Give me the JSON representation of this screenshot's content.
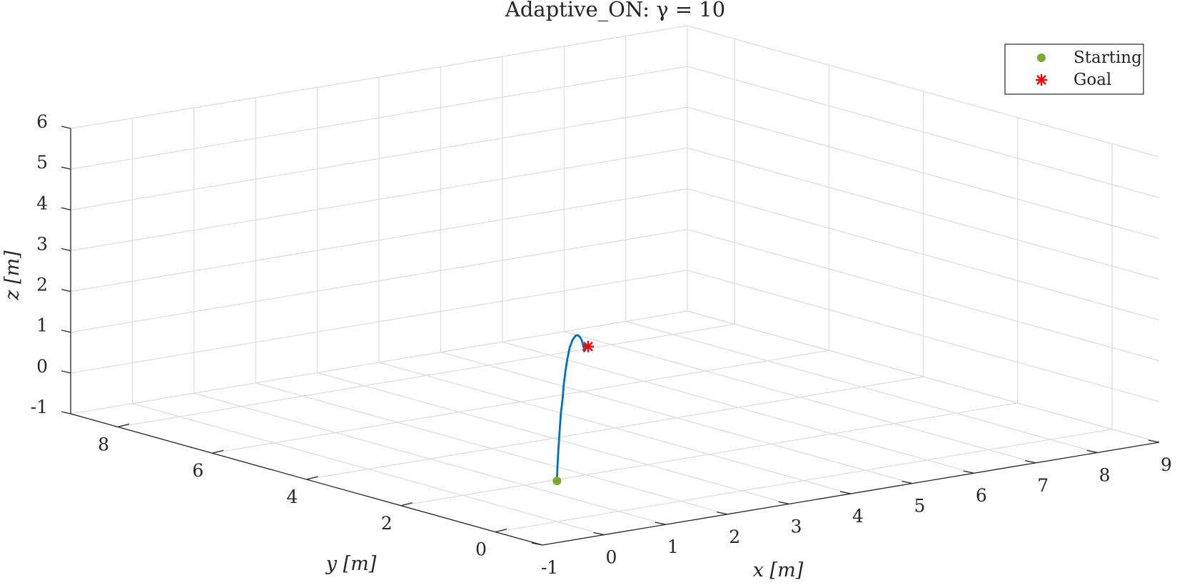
{
  "chart_data": {
    "type": "line",
    "projection": "3d",
    "title": "Adaptive_ON: γ = 10",
    "xlabel": "x [m]",
    "ylabel": "y [m]",
    "zlabel": "z [m]",
    "xlim": [
      -1,
      9
    ],
    "ylim": [
      -1,
      9
    ],
    "zlim": [
      -1,
      6
    ],
    "xticks": [
      "-1",
      "0",
      "1",
      "2",
      "3",
      "4",
      "5",
      "6",
      "7",
      "8",
      "9"
    ],
    "yticks": [
      "0",
      "2",
      "4",
      "6",
      "8"
    ],
    "zticks": [
      "-1",
      "0",
      "1",
      "2",
      "3",
      "4",
      "5",
      "6"
    ],
    "grid": true,
    "legend_position": "top-right",
    "legend": [
      {
        "label": "Starting",
        "marker": "filled-circle",
        "color": "#77ac30"
      },
      {
        "label": "Goal",
        "marker": "asterisk",
        "color": "#ff0000"
      }
    ],
    "trajectory_color": "#0072bd",
    "series": [
      {
        "points": [
          [
            0,
            0,
            0
          ],
          [
            0.03,
            0.03,
            0.3
          ],
          [
            0.08,
            0.08,
            0.6
          ],
          [
            0.14,
            0.14,
            0.9
          ],
          [
            0.2,
            0.2,
            1.2
          ],
          [
            0.27,
            0.27,
            1.5
          ],
          [
            0.35,
            0.34,
            1.8
          ],
          [
            0.43,
            0.42,
            2.1
          ],
          [
            0.52,
            0.5,
            2.4
          ],
          [
            0.62,
            0.59,
            2.65
          ],
          [
            0.74,
            0.7,
            2.85
          ],
          [
            0.88,
            0.82,
            2.97
          ],
          [
            1.02,
            0.94,
            3.0
          ],
          [
            1.14,
            1.05,
            2.95
          ],
          [
            1.24,
            1.13,
            2.85
          ],
          [
            1.32,
            1.2,
            2.73
          ],
          [
            1.37,
            1.24,
            2.6
          ],
          [
            1.41,
            1.27,
            2.5
          ],
          [
            1.38,
            1.21,
            2.46
          ],
          [
            1.46,
            1.33,
            2.54
          ],
          [
            1.39,
            1.24,
            2.43
          ],
          [
            1.47,
            1.32,
            2.52
          ],
          [
            1.4,
            1.27,
            2.45
          ],
          [
            1.48,
            1.3,
            2.5
          ],
          [
            1.42,
            1.26,
            2.47
          ],
          [
            1.5,
            1.32,
            2.51
          ],
          [
            1.45,
            1.29,
            2.48
          ],
          [
            1.52,
            1.31,
            2.5
          ],
          [
            1.47,
            1.3,
            2.49
          ],
          [
            1.5,
            1.3,
            2.5
          ]
        ]
      }
    ],
    "start_point": [
      0,
      0,
      0
    ],
    "goal_point": [
      1.5,
      1.3,
      2.5
    ]
  }
}
